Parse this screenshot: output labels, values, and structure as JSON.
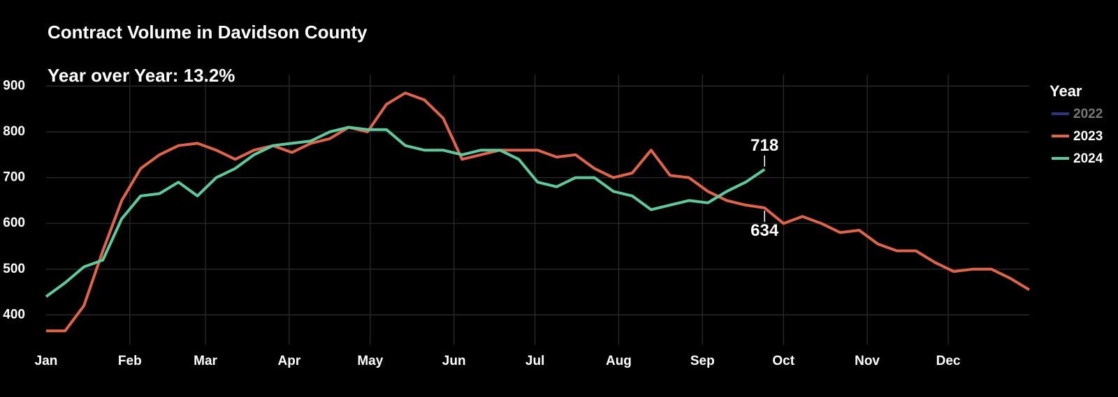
{
  "chart_data": {
    "type": "line",
    "title": "Contract Volume in Davidson County",
    "subtitle": "Year over Year: 13.2%",
    "legend_title": "Year",
    "legend_position": "right",
    "grid": true,
    "x": [
      0,
      7,
      14,
      21,
      28,
      35,
      42,
      49,
      56,
      63,
      70,
      77,
      84,
      91,
      98,
      105,
      112,
      119,
      126,
      133,
      140,
      147,
      154,
      161,
      168,
      175,
      182,
      189,
      196,
      203,
      210,
      217,
      224,
      231,
      238,
      245,
      252,
      259,
      266,
      273,
      280,
      287,
      294,
      301,
      308,
      315,
      322,
      329,
      336,
      343,
      350,
      357,
      364
    ],
    "xlim": [
      0,
      364
    ],
    "xticks": [
      {
        "value": 0,
        "label": "Jan"
      },
      {
        "value": 31,
        "label": "Feb"
      },
      {
        "value": 59,
        "label": "Mar"
      },
      {
        "value": 90,
        "label": "Apr"
      },
      {
        "value": 120,
        "label": "May"
      },
      {
        "value": 151,
        "label": "Jun"
      },
      {
        "value": 181,
        "label": "Jul"
      },
      {
        "value": 212,
        "label": "Aug"
      },
      {
        "value": 243,
        "label": "Sep"
      },
      {
        "value": 273,
        "label": "Oct"
      },
      {
        "value": 304,
        "label": "Nov"
      },
      {
        "value": 334,
        "label": "Dec"
      }
    ],
    "ylim": [
      335,
      925
    ],
    "yticks": [
      400,
      500,
      600,
      700,
      800,
      900
    ],
    "series": [
      {
        "name": "2022",
        "color": "#2b3580",
        "visible": false,
        "values": [
          null,
          null,
          null,
          null,
          null,
          null,
          null,
          null,
          null,
          null,
          null,
          null,
          null,
          null,
          null,
          null,
          null,
          null,
          null,
          null,
          null,
          null,
          null,
          null,
          null,
          null,
          null,
          null,
          null,
          null,
          null,
          null,
          null,
          null,
          null,
          null,
          null,
          null,
          null,
          null,
          null,
          null,
          null,
          null,
          null,
          null,
          null,
          null,
          null,
          null,
          null,
          null,
          null
        ]
      },
      {
        "name": "2023",
        "color": "#e0644a",
        "visible": true,
        "values": [
          365,
          365,
          420,
          540,
          650,
          720,
          750,
          770,
          775,
          760,
          740,
          760,
          770,
          755,
          775,
          785,
          810,
          800,
          860,
          885,
          870,
          830,
          740,
          750,
          760,
          760,
          760,
          745,
          750,
          720,
          700,
          710,
          760,
          705,
          700,
          670,
          650,
          640,
          634,
          600,
          615,
          600,
          580,
          585,
          555,
          540,
          540,
          515,
          495,
          500,
          500,
          480,
          455
        ]
      },
      {
        "name": "2024",
        "color": "#5fc99b",
        "visible": true,
        "values": [
          440,
          470,
          505,
          520,
          610,
          660,
          665,
          690,
          660,
          700,
          720,
          750,
          770,
          775,
          780,
          800,
          810,
          805,
          805,
          770,
          760,
          760,
          750,
          760,
          760,
          740,
          690,
          680,
          700,
          700,
          670,
          660,
          630,
          640,
          650,
          645,
          670,
          690,
          718,
          null,
          null,
          null,
          null,
          null,
          null,
          null,
          null,
          null,
          null,
          null,
          null,
          null,
          null
        ]
      }
    ]
  }
}
